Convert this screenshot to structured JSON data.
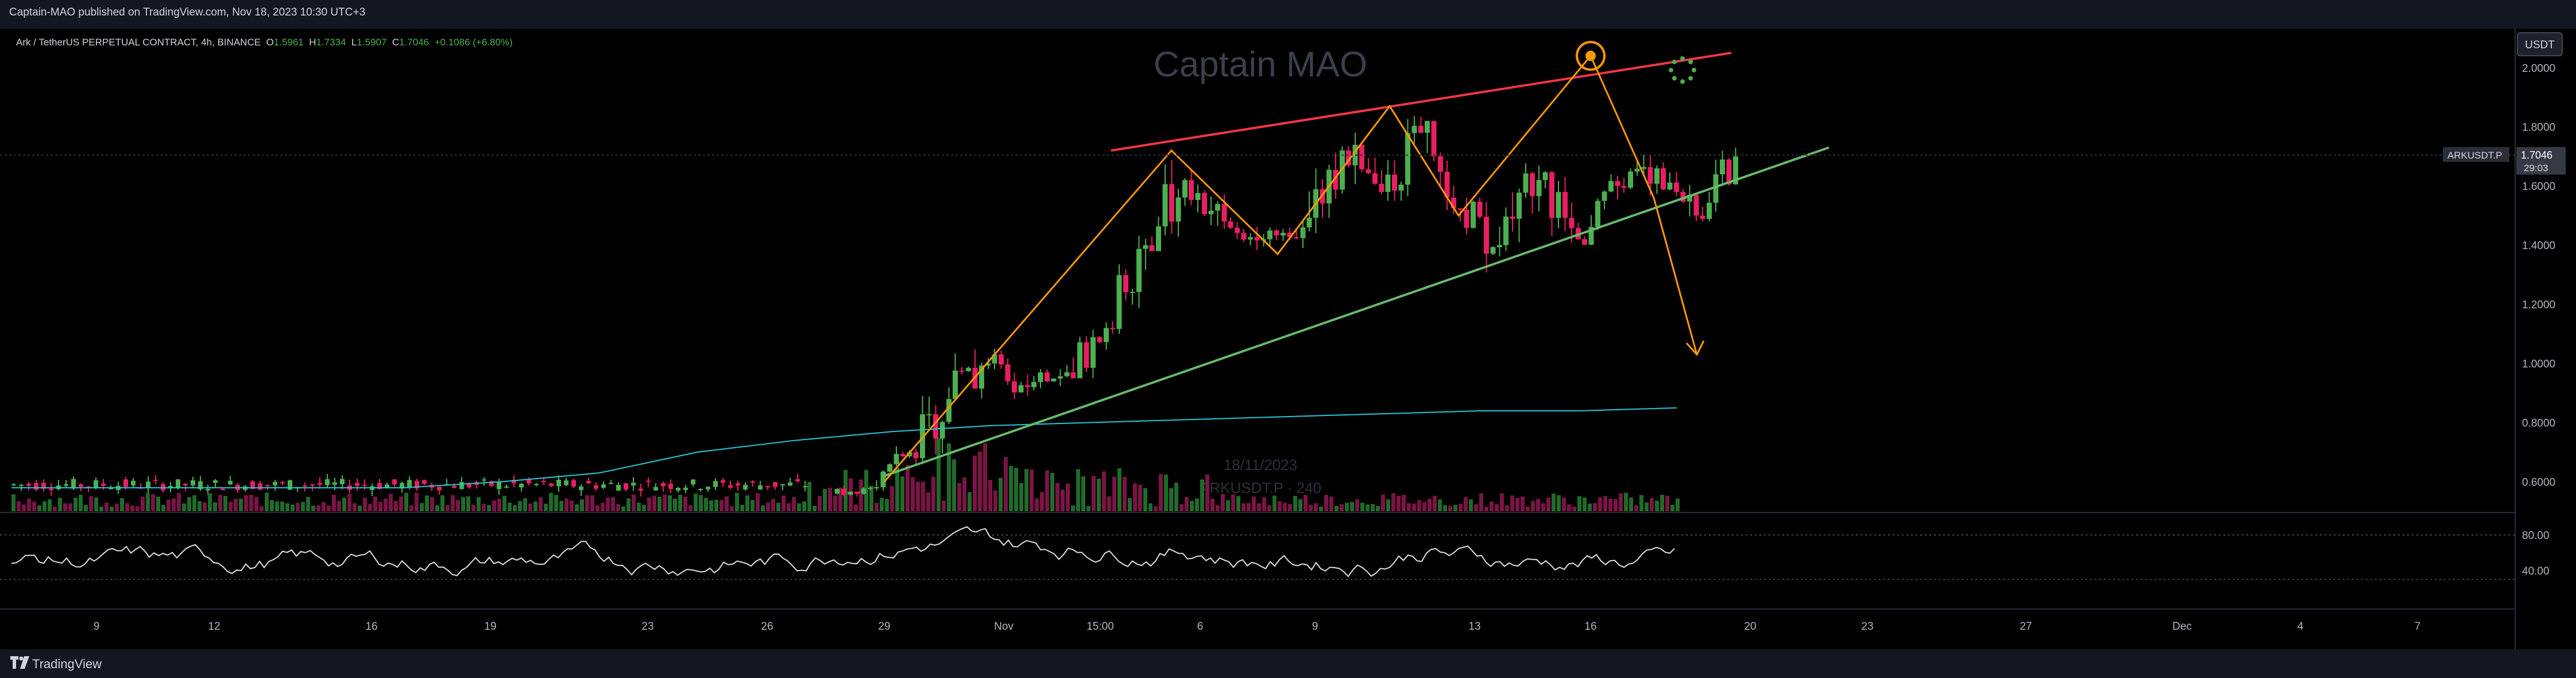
{
  "header": {
    "published": "Captain-MAO published on TradingView.com, Nov 18, 2023 10:30 UTC+3"
  },
  "symbol": {
    "name": "Ark / TetherUS PERPETUAL CONTRACT, 4h, BINANCE",
    "open_label": "O",
    "open": "1.5961",
    "high_label": "H",
    "high": "1.7334",
    "low_label": "L",
    "low": "1.5907",
    "close_label": "C",
    "close": "1.7046",
    "change": "+0.1086 (+6.80%)"
  },
  "currency_button": "USDT",
  "watermark": {
    "title": "Captain MAO",
    "date": "18/11/2023",
    "symbol": "ARKUSDT.P · 240"
  },
  "price_badge": {
    "ticker": "ARKUSDT.P",
    "price": "1.7046",
    "countdown": "29:03"
  },
  "footer": {
    "brand": "TradingView"
  },
  "colors": {
    "up": "#4caf50",
    "down": "#e91e63",
    "pattern": "#ff9800",
    "resistance": "#f23645",
    "support": "#66bb6a",
    "ma": "#26c6da"
  },
  "chart_data": {
    "type": "candlestick",
    "title": "Ark / TetherUS PERPETUAL CONTRACT, 4h, BINANCE",
    "price_axis": {
      "ticks": [
        "2.0000",
        "1.8000",
        "1.6000",
        "1.4000",
        "1.2000",
        "1.0000",
        "0.8000",
        "0.6000"
      ],
      "range": [
        0.5,
        2.12
      ]
    },
    "time_axis": {
      "ticks": [
        "9",
        "12",
        "16",
        "19",
        "23",
        "26",
        "29",
        "Nov",
        "15:00",
        "6",
        "9",
        "13",
        "16",
        "20",
        "23",
        "27",
        "Dec",
        "4",
        "7"
      ]
    },
    "candles": [
      {
        "date": "Oct 27",
        "o": 0.56,
        "h": 0.6,
        "l": 0.55,
        "c": 0.58
      },
      {
        "date": "Oct 28",
        "o": 0.58,
        "h": 0.72,
        "l": 0.57,
        "c": 0.7
      },
      {
        "date": "Oct 29",
        "o": 0.7,
        "h": 0.92,
        "l": 0.66,
        "c": 0.88
      },
      {
        "date": "Oct 30",
        "o": 0.88,
        "h": 1.12,
        "l": 0.85,
        "c": 1.0
      },
      {
        "date": "Oct 31",
        "o": 1.0,
        "h": 1.05,
        "l": 0.88,
        "c": 0.92
      },
      {
        "date": "Nov 1",
        "o": 0.92,
        "h": 1.0,
        "l": 0.88,
        "c": 0.97
      },
      {
        "date": "Nov 2",
        "o": 0.97,
        "h": 1.15,
        "l": 0.95,
        "c": 1.12
      },
      {
        "date": "Nov 3",
        "o": 1.12,
        "h": 1.45,
        "l": 1.1,
        "c": 1.4
      },
      {
        "date": "Nov 4",
        "o": 1.4,
        "h": 1.71,
        "l": 1.38,
        "c": 1.62
      },
      {
        "date": "Nov 5",
        "o": 1.62,
        "h": 1.66,
        "l": 1.45,
        "c": 1.48
      },
      {
        "date": "Nov 6",
        "o": 1.48,
        "h": 1.52,
        "l": 1.38,
        "c": 1.42
      },
      {
        "date": "Nov 7",
        "o": 1.42,
        "h": 1.5,
        "l": 1.36,
        "c": 1.46
      },
      {
        "date": "Nov 8",
        "o": 1.46,
        "h": 1.8,
        "l": 1.44,
        "c": 1.72
      },
      {
        "date": "Nov 9",
        "o": 1.72,
        "h": 1.78,
        "l": 1.52,
        "c": 1.58
      },
      {
        "date": "Nov 10",
        "o": 1.58,
        "h": 1.87,
        "l": 1.55,
        "c": 1.78
      },
      {
        "date": "Nov 11",
        "o": 1.78,
        "h": 1.82,
        "l": 1.48,
        "c": 1.52
      },
      {
        "date": "Nov 12",
        "o": 1.52,
        "h": 1.56,
        "l": 1.3,
        "c": 1.4
      },
      {
        "date": "Nov 13",
        "o": 1.4,
        "h": 1.72,
        "l": 1.38,
        "c": 1.62
      },
      {
        "date": "Nov 14",
        "o": 1.62,
        "h": 1.65,
        "l": 1.38,
        "c": 1.42
      },
      {
        "date": "Nov 15",
        "o": 1.42,
        "h": 1.64,
        "l": 1.4,
        "c": 1.6
      },
      {
        "date": "Nov 16",
        "o": 1.6,
        "h": 1.72,
        "l": 1.55,
        "c": 1.66
      },
      {
        "date": "Nov 17",
        "o": 1.66,
        "h": 1.68,
        "l": 1.46,
        "c": 1.5
      },
      {
        "date": "Nov 18",
        "o": 1.5,
        "h": 1.73,
        "l": 1.48,
        "c": 1.7
      }
    ],
    "pre_rally_level": 0.59,
    "annotations": {
      "resistance_line": [
        [
          "Nov 4",
          1.72
        ],
        [
          "Nov 19",
          2.05
        ]
      ],
      "support_line": [
        [
          "Oct 29",
          0.7
        ],
        [
          "Nov 21",
          1.73
        ]
      ],
      "pattern_path": [
        [
          "Oct 29",
          0.6
        ],
        [
          "Nov 4",
          1.72
        ],
        [
          "Nov 7",
          1.37
        ],
        [
          "Nov 10",
          1.87
        ],
        [
          "Nov 12",
          1.5
        ],
        [
          "Nov 16",
          2.04
        ],
        [
          "Nov 17",
          1.56
        ],
        [
          "Nov 18",
          1.03
        ]
      ],
      "projection_target": 1.03
    },
    "moving_average": [
      0.58,
      0.58,
      0.58,
      0.58,
      0.58,
      0.6,
      0.63,
      0.7,
      0.74,
      0.77,
      0.79,
      0.8,
      0.81,
      0.82,
      0.83,
      0.84,
      0.84,
      0.85
    ],
    "rsi": {
      "ticks": [
        "80.00",
        "40.00"
      ],
      "levels": [
        80,
        30
      ]
    }
  }
}
